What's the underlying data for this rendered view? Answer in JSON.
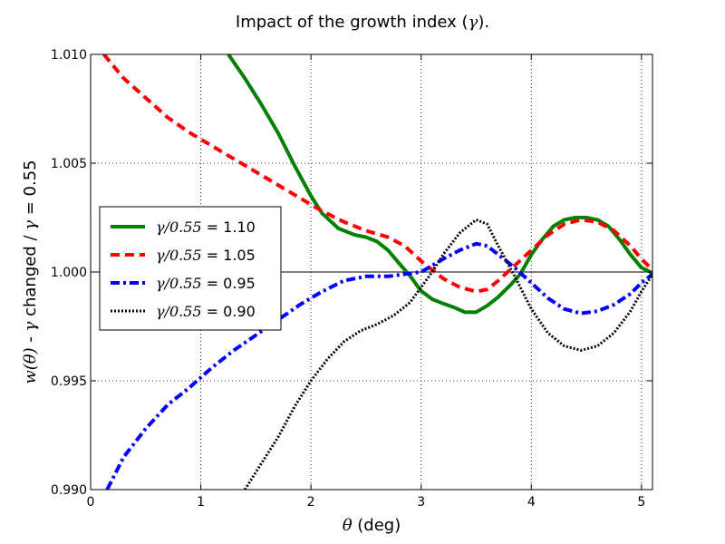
{
  "chart_data": {
    "type": "line",
    "title": "Impact of the growth index (γ).",
    "title_parts": [
      "Impact of the growth index (",
      "γ",
      ")."
    ],
    "xlabel": "θ (deg)",
    "xlabel_parts": [
      "θ",
      " (deg)"
    ],
    "ylabel": "w(θ) - γ changed / γ = 0.55",
    "ylabel_parts": [
      "w(θ)",
      " - ",
      "γ",
      " changed / ",
      "γ",
      " = 0.55"
    ],
    "xlim": [
      0,
      5.1
    ],
    "ylim": [
      0.99,
      1.01
    ],
    "xticks": [
      0,
      1,
      2,
      3,
      4,
      5
    ],
    "xtick_labels": [
      "0",
      "1",
      "2",
      "3",
      "4",
      "5"
    ],
    "yticks": [
      0.99,
      0.995,
      1.0,
      1.005,
      1.01
    ],
    "ytick_labels": [
      "0.990",
      "0.995",
      "1.000",
      "1.005",
      "1.010"
    ],
    "grid": true,
    "reference_line_y": 1.0,
    "legend_position": "center-left",
    "series": [
      {
        "name": "γ/0.55 = 1.10",
        "label_math": "γ/0.55",
        "label_value": " = 1.10",
        "color": "#008000",
        "style": "solid",
        "x": [
          1.25,
          1.4,
          1.55,
          1.7,
          1.85,
          2.0,
          2.1,
          2.25,
          2.4,
          2.5,
          2.6,
          2.7,
          2.8,
          2.9,
          3.0,
          3.1,
          3.2,
          3.3,
          3.4,
          3.5,
          3.6,
          3.7,
          3.8,
          3.9,
          4.0,
          4.1,
          4.2,
          4.3,
          4.4,
          4.5,
          4.6,
          4.7,
          4.8,
          4.9,
          5.0,
          5.1
        ],
        "y": [
          1.01,
          1.0089,
          1.0077,
          1.0064,
          1.0049,
          1.0035,
          1.0027,
          1.002,
          1.0017,
          1.0016,
          1.0014,
          1.001,
          1.0004,
          0.99982,
          0.99913,
          0.99875,
          0.99855,
          0.99837,
          0.99815,
          0.99816,
          0.99845,
          0.99885,
          0.99935,
          0.9999,
          1.0008,
          1.0015,
          1.0021,
          1.0024,
          1.0025,
          1.0025,
          1.0024,
          1.0021,
          1.0015,
          1.0008,
          1.0002,
          0.99995
        ]
      },
      {
        "name": "γ/0.55 = 1.05",
        "label_math": "γ/0.55",
        "label_value": " = 1.05",
        "color": "#ff0000",
        "style": "dashed",
        "x": [
          0.12,
          0.3,
          0.5,
          0.7,
          0.9,
          1.1,
          1.3,
          1.5,
          1.7,
          1.9,
          2.1,
          2.3,
          2.5,
          2.7,
          2.85,
          3.0,
          3.1,
          3.2,
          3.35,
          3.5,
          3.6,
          3.7,
          3.85,
          4.0,
          4.15,
          4.3,
          4.45,
          4.6,
          4.75,
          4.9,
          5.0,
          5.1
        ],
        "y": [
          1.01,
          1.0089,
          1.008,
          1.0071,
          1.0064,
          1.0058,
          1.0052,
          1.0046,
          1.004,
          1.0034,
          1.0028,
          1.0023,
          1.0019,
          1.0016,
          1.0012,
          1.0005,
          1.0001,
          0.9997,
          0.9993,
          0.9991,
          0.9992,
          0.9996,
          1.0003,
          1.001,
          1.0017,
          1.0022,
          1.0024,
          1.0023,
          1.0019,
          1.0012,
          1.0006,
          1.0001
        ]
      },
      {
        "name": "γ/0.55 = 0.95",
        "label_math": "γ/0.55",
        "label_value": " = 0.95",
        "color": "#0000ff",
        "style": "dashdot",
        "x": [
          0.15,
          0.3,
          0.5,
          0.7,
          0.9,
          1.1,
          1.3,
          1.5,
          1.7,
          1.9,
          2.1,
          2.3,
          2.5,
          2.7,
          2.85,
          3.0,
          3.1,
          3.2,
          3.35,
          3.5,
          3.6,
          3.7,
          3.85,
          4.0,
          4.15,
          4.3,
          4.45,
          4.6,
          4.75,
          4.9,
          5.0,
          5.1
        ],
        "y": [
          0.99,
          0.9915,
          0.9928,
          0.9939,
          0.9947,
          0.9956,
          0.9964,
          0.9971,
          0.9978,
          0.9985,
          0.9991,
          0.9996,
          0.9998,
          0.9998,
          0.9999,
          1.0,
          1.0003,
          1.0006,
          1.001,
          1.0013,
          1.0012,
          1.0008,
          1.0002,
          0.9995,
          0.9988,
          0.9983,
          0.9981,
          0.9982,
          0.9985,
          0.999,
          0.9995,
          0.9999
        ]
      },
      {
        "name": "γ/0.55 = 0.90",
        "label_math": "γ/0.55",
        "label_value": " = 0.90",
        "color": "#000000",
        "style": "dotted",
        "x": [
          1.4,
          1.55,
          1.7,
          1.85,
          2.0,
          2.15,
          2.3,
          2.45,
          2.6,
          2.75,
          2.9,
          3.0,
          3.1,
          3.2,
          3.35,
          3.5,
          3.6,
          3.7,
          3.85,
          4.0,
          4.15,
          4.3,
          4.45,
          4.6,
          4.75,
          4.9,
          5.0,
          5.1
        ],
        "y": [
          0.99,
          0.9912,
          0.9924,
          0.9938,
          0.995,
          0.996,
          0.9968,
          0.9973,
          0.9976,
          0.998,
          0.9986,
          0.9993,
          1.0,
          1.0008,
          1.0018,
          1.0024,
          1.0022,
          1.0012,
          0.9998,
          0.9983,
          0.9972,
          0.9966,
          0.9964,
          0.9966,
          0.9972,
          0.9982,
          0.9991,
          0.9999
        ]
      }
    ]
  }
}
